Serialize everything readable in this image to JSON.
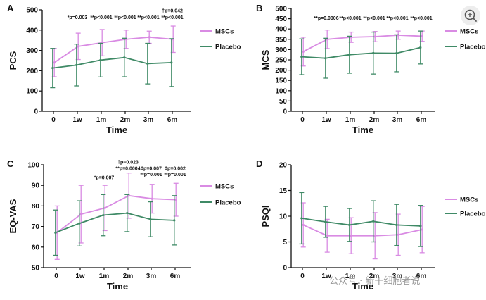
{
  "watermark": "公众号 · 新干细胞者说",
  "chart_data": [
    {
      "type": "line",
      "panel_label": "A",
      "xlabel": "Time",
      "ylabel": "PCS",
      "categories": [
        "0",
        "1w",
        "1m",
        "2m",
        "3m",
        "6m"
      ],
      "ylim": [
        0,
        500
      ],
      "yticks": [
        0,
        100,
        200,
        300,
        400,
        500
      ],
      "legend_position": "top-right",
      "series": [
        {
          "name": "MSCs",
          "color": "#d98be3",
          "values": [
            240,
            320,
            338,
            355,
            365,
            355
          ],
          "sd": [
            70,
            65,
            65,
            45,
            30,
            65
          ]
        },
        {
          "name": "Placebo",
          "color": "#3f8a66",
          "values": [
            213,
            228,
            252,
            265,
            235,
            240
          ],
          "sd": [
            97,
            103,
            83,
            95,
            100,
            118
          ]
        }
      ],
      "annotations": [
        {
          "text": "*p=0.003",
          "x": "1w",
          "y": 455
        },
        {
          "text": "**p<0.001",
          "x": "1m",
          "y": 455
        },
        {
          "text": "**p<0.001",
          "x": "2m",
          "y": 455
        },
        {
          "text": "**p<0.001",
          "x": "3m",
          "y": 455
        },
        {
          "text": "**p<0.001",
          "x": "6m",
          "y": 455
        },
        {
          "text": "†p=0.042",
          "x": "6m",
          "y": 487
        }
      ]
    },
    {
      "type": "line",
      "panel_label": "B",
      "xlabel": "Time",
      "ylabel": "MCS",
      "categories": [
        "0",
        "1w",
        "1m",
        "2m",
        "3m",
        "6m"
      ],
      "ylim": [
        0,
        500
      ],
      "yticks": [
        0,
        50,
        100,
        150,
        200,
        250,
        300,
        350,
        400,
        450,
        500
      ],
      "legend_position": "top-right",
      "series": [
        {
          "name": "MSCs",
          "color": "#d98be3",
          "values": [
            290,
            350,
            360,
            363,
            370,
            365
          ],
          "sd": [
            70,
            45,
            25,
            25,
            20,
            25
          ]
        },
        {
          "name": "Placebo",
          "color": "#3f8a66",
          "values": [
            265,
            258,
            275,
            283,
            282,
            310
          ],
          "sd": [
            87,
            97,
            90,
            102,
            90,
            80
          ]
        }
      ],
      "annotations": [
        {
          "text": "**p=0.0006",
          "x": "1w",
          "y": 445
        },
        {
          "text": "**p<0.001",
          "x": "1m",
          "y": 445
        },
        {
          "text": "**p<0.001",
          "x": "2m",
          "y": 445
        },
        {
          "text": "**p<0.001",
          "x": "3m",
          "y": 445
        },
        {
          "text": "**p<0.001",
          "x": "6m",
          "y": 445
        }
      ]
    },
    {
      "type": "line",
      "panel_label": "C",
      "xlabel": "Time",
      "ylabel": "EQ-VAS",
      "categories": [
        "0",
        "1w",
        "1m",
        "2m",
        "3m",
        "6m"
      ],
      "ylim": [
        50,
        100
      ],
      "yticks": [
        50,
        60,
        70,
        80,
        90,
        100
      ],
      "legend_position": "top-right",
      "series": [
        {
          "name": "MSCs",
          "color": "#d98be3",
          "values": [
            67,
            76,
            79,
            85,
            83.5,
            83
          ],
          "sd": [
            13,
            14,
            11,
            11,
            7,
            8
          ]
        },
        {
          "name": "Placebo",
          "color": "#3f8a66",
          "values": [
            67,
            71.5,
            75.5,
            76.5,
            73.5,
            73
          ],
          "sd": [
            11,
            11,
            10,
            9,
            8.5,
            12
          ]
        }
      ],
      "annotations": [
        {
          "text": "*p=0.007",
          "x": "1m",
          "y": 93
        },
        {
          "text": "†p=0.023",
          "x": "2m",
          "y": 100.5
        },
        {
          "text": "**p=0.0004",
          "x": "2m",
          "y": 97.5
        },
        {
          "text": "‡p=0.007",
          "x": "3m",
          "y": 97.5
        },
        {
          "text": "**p=0.001",
          "x": "3m",
          "y": 94.5
        },
        {
          "text": "‡p=0.002",
          "x": "6m",
          "y": 97.5
        },
        {
          "text": "**p=0.001",
          "x": "6m",
          "y": 94.5
        }
      ]
    },
    {
      "type": "line",
      "panel_label": "D",
      "xlabel": "Time",
      "ylabel": "PSQI",
      "categories": [
        "0",
        "1w",
        "1m",
        "2m",
        "3m",
        "6m"
      ],
      "ylim": [
        0,
        20
      ],
      "yticks": [
        0,
        5,
        10,
        15,
        20
      ],
      "legend_position": "top-right",
      "series": [
        {
          "name": "MSCs",
          "color": "#d98be3",
          "values": [
            8.3,
            6.2,
            6.2,
            6.2,
            6.4,
            7.4
          ],
          "sd": [
            4.3,
            3.2,
            3.5,
            4.5,
            4.0,
            4.5
          ]
        },
        {
          "name": "Placebo",
          "color": "#3f8a66",
          "values": [
            9.6,
            8.9,
            8.3,
            9.0,
            8.3,
            8.1
          ],
          "sd": [
            5.0,
            3.0,
            3.2,
            4.0,
            4.0,
            4.0
          ]
        }
      ],
      "annotations": []
    }
  ]
}
